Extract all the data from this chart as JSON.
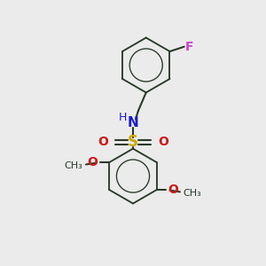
{
  "bg_color": "#ebebeb",
  "bond_color": "#2a3a2a",
  "bond_width": 1.5,
  "N_color": "#1a1acc",
  "O_color": "#cc1a1a",
  "F_color": "#cc44cc",
  "S_color": "#ccaa00",
  "font_size": 10,
  "fig_size": [
    3.0,
    3.0
  ],
  "dpi": 100,
  "xlim": [
    0,
    10
  ],
  "ylim": [
    0,
    10
  ]
}
